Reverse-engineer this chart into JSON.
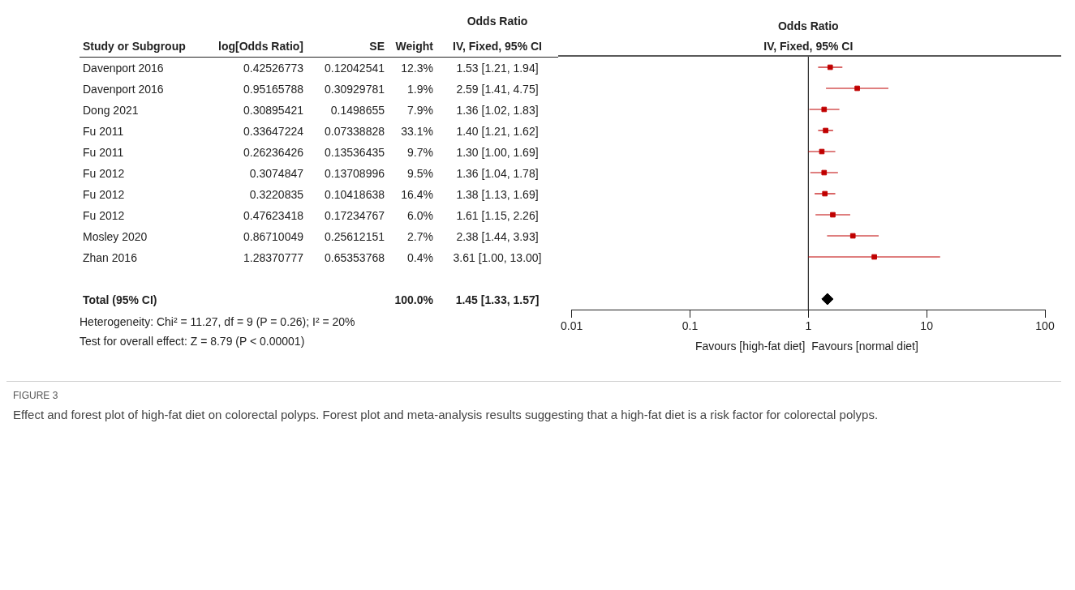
{
  "chart_data": [
    {
      "type": "other",
      "title": "Odds Ratio",
      "categories": [
        "Study or Subgroup",
        "log[Odds Ratio]",
        "SE",
        "Weight",
        "IV, Fixed, 95% CI"
      ],
      "y_categories": [
        "Davenport 2016",
        "Davenport 2016",
        "Dong 2021",
        "Fu 2011",
        "Fu 2011",
        "Fu 2012",
        "Fu 2012",
        "Fu 2012",
        "Mosley 2020",
        "Zhan 2016",
        null,
        "Total (95% CI)"
      ],
      "cell_labels": [
        [
          "0.42526773",
          "0.12042541",
          "12.3%",
          "1.53 [1.21, 1.94]"
        ],
        [
          "0.95165788",
          "0.30929781",
          "1.9%",
          "2.59 [1.41, 4.75]"
        ],
        [
          "0.30895421",
          "0.1498655",
          "7.9%",
          "1.36 [1.02, 1.83]"
        ],
        [
          "0.33647224",
          "0.07338828",
          "33.1%",
          "1.40 [1.21, 1.62]"
        ],
        [
          "0.26236426",
          "0.13536435",
          "9.7%",
          "1.30 [1.00, 1.69]"
        ],
        [
          "0.3074847",
          "0.13708996",
          "9.5%",
          "1.36 [1.04, 1.78]"
        ],
        [
          "0.3220835",
          "0.10418638",
          "16.4%",
          "1.38 [1.13, 1.69]"
        ],
        [
          "0.47623418",
          "0.17234767",
          "6.0%",
          "1.61 [1.15, 2.26]"
        ],
        [
          "0.86710049",
          "0.25612151",
          "2.7%",
          "2.38 [1.44, 3.93]"
        ],
        [
          "1.28370777",
          "0.65353768",
          "0.4%",
          "3.61 [1.00, 13.00]"
        ],
        [
          null,
          null,
          null,
          null
        ],
        [
          null,
          null,
          "100.0%",
          "1.45 [1.33, 1.57]"
        ]
      ],
      "annotations": [
        "Heterogeneity: Chi² = 11.27, df = 9 (P = 0.26); I² = 20%",
        "Test for overall effect: Z = 8.79 (P < 0.00001)"
      ]
    },
    {
      "type": "scatter",
      "title": "Odds Ratio",
      "subtitle": "IV, Fixed, 95% CI",
      "orientation": "horizontal",
      "categories": [
        null,
        null,
        null,
        null,
        null,
        null,
        null,
        null,
        null,
        null,
        null,
        null
      ],
      "series": [
        {
          "color": "#c00000",
          "marker": "square",
          "values": [
            1.53,
            2.59,
            1.36,
            1.4,
            1.3,
            1.36,
            1.38,
            1.61,
            2.38,
            3.61,
            null,
            null
          ],
          "errors": [
            [
              1.21,
              1.94
            ],
            [
              1.41,
              4.75
            ],
            [
              1.02,
              1.83
            ],
            [
              1.21,
              1.62
            ],
            [
              1.0,
              1.69
            ],
            [
              1.04,
              1.78
            ],
            [
              1.13,
              1.69
            ],
            [
              1.15,
              2.26
            ],
            [
              1.44,
              3.93
            ],
            [
              1.0,
              13.0
            ],
            null,
            null
          ]
        },
        {
          "color": "#000000",
          "marker": "diamond",
          "values": [
            null,
            null,
            null,
            null,
            null,
            null,
            null,
            null,
            null,
            null,
            null,
            1.45
          ],
          "errors": [
            null,
            null,
            null,
            null,
            null,
            null,
            null,
            null,
            null,
            null,
            null,
            [
              1.33,
              1.57
            ]
          ]
        }
      ],
      "log": "x",
      "xlim": [
        0.01,
        100
      ],
      "xticks": [
        0.01,
        0.1,
        1,
        10,
        100
      ],
      "tick_labels": "x",
      "ref_lines": [
        {
          "axis": "x",
          "value": 1,
          "color": "#000000"
        }
      ],
      "annotations": [
        "Favours [high-fat diet]",
        "Favours [normal diet]",
        "FIGURE 3",
        "Effect and forest plot of high-fat diet on colorectal polyps. Forest plot and meta-analysis results suggesting that a high-fat diet is a risk factor for colorectal polyps."
      ]
    }
  ]
}
